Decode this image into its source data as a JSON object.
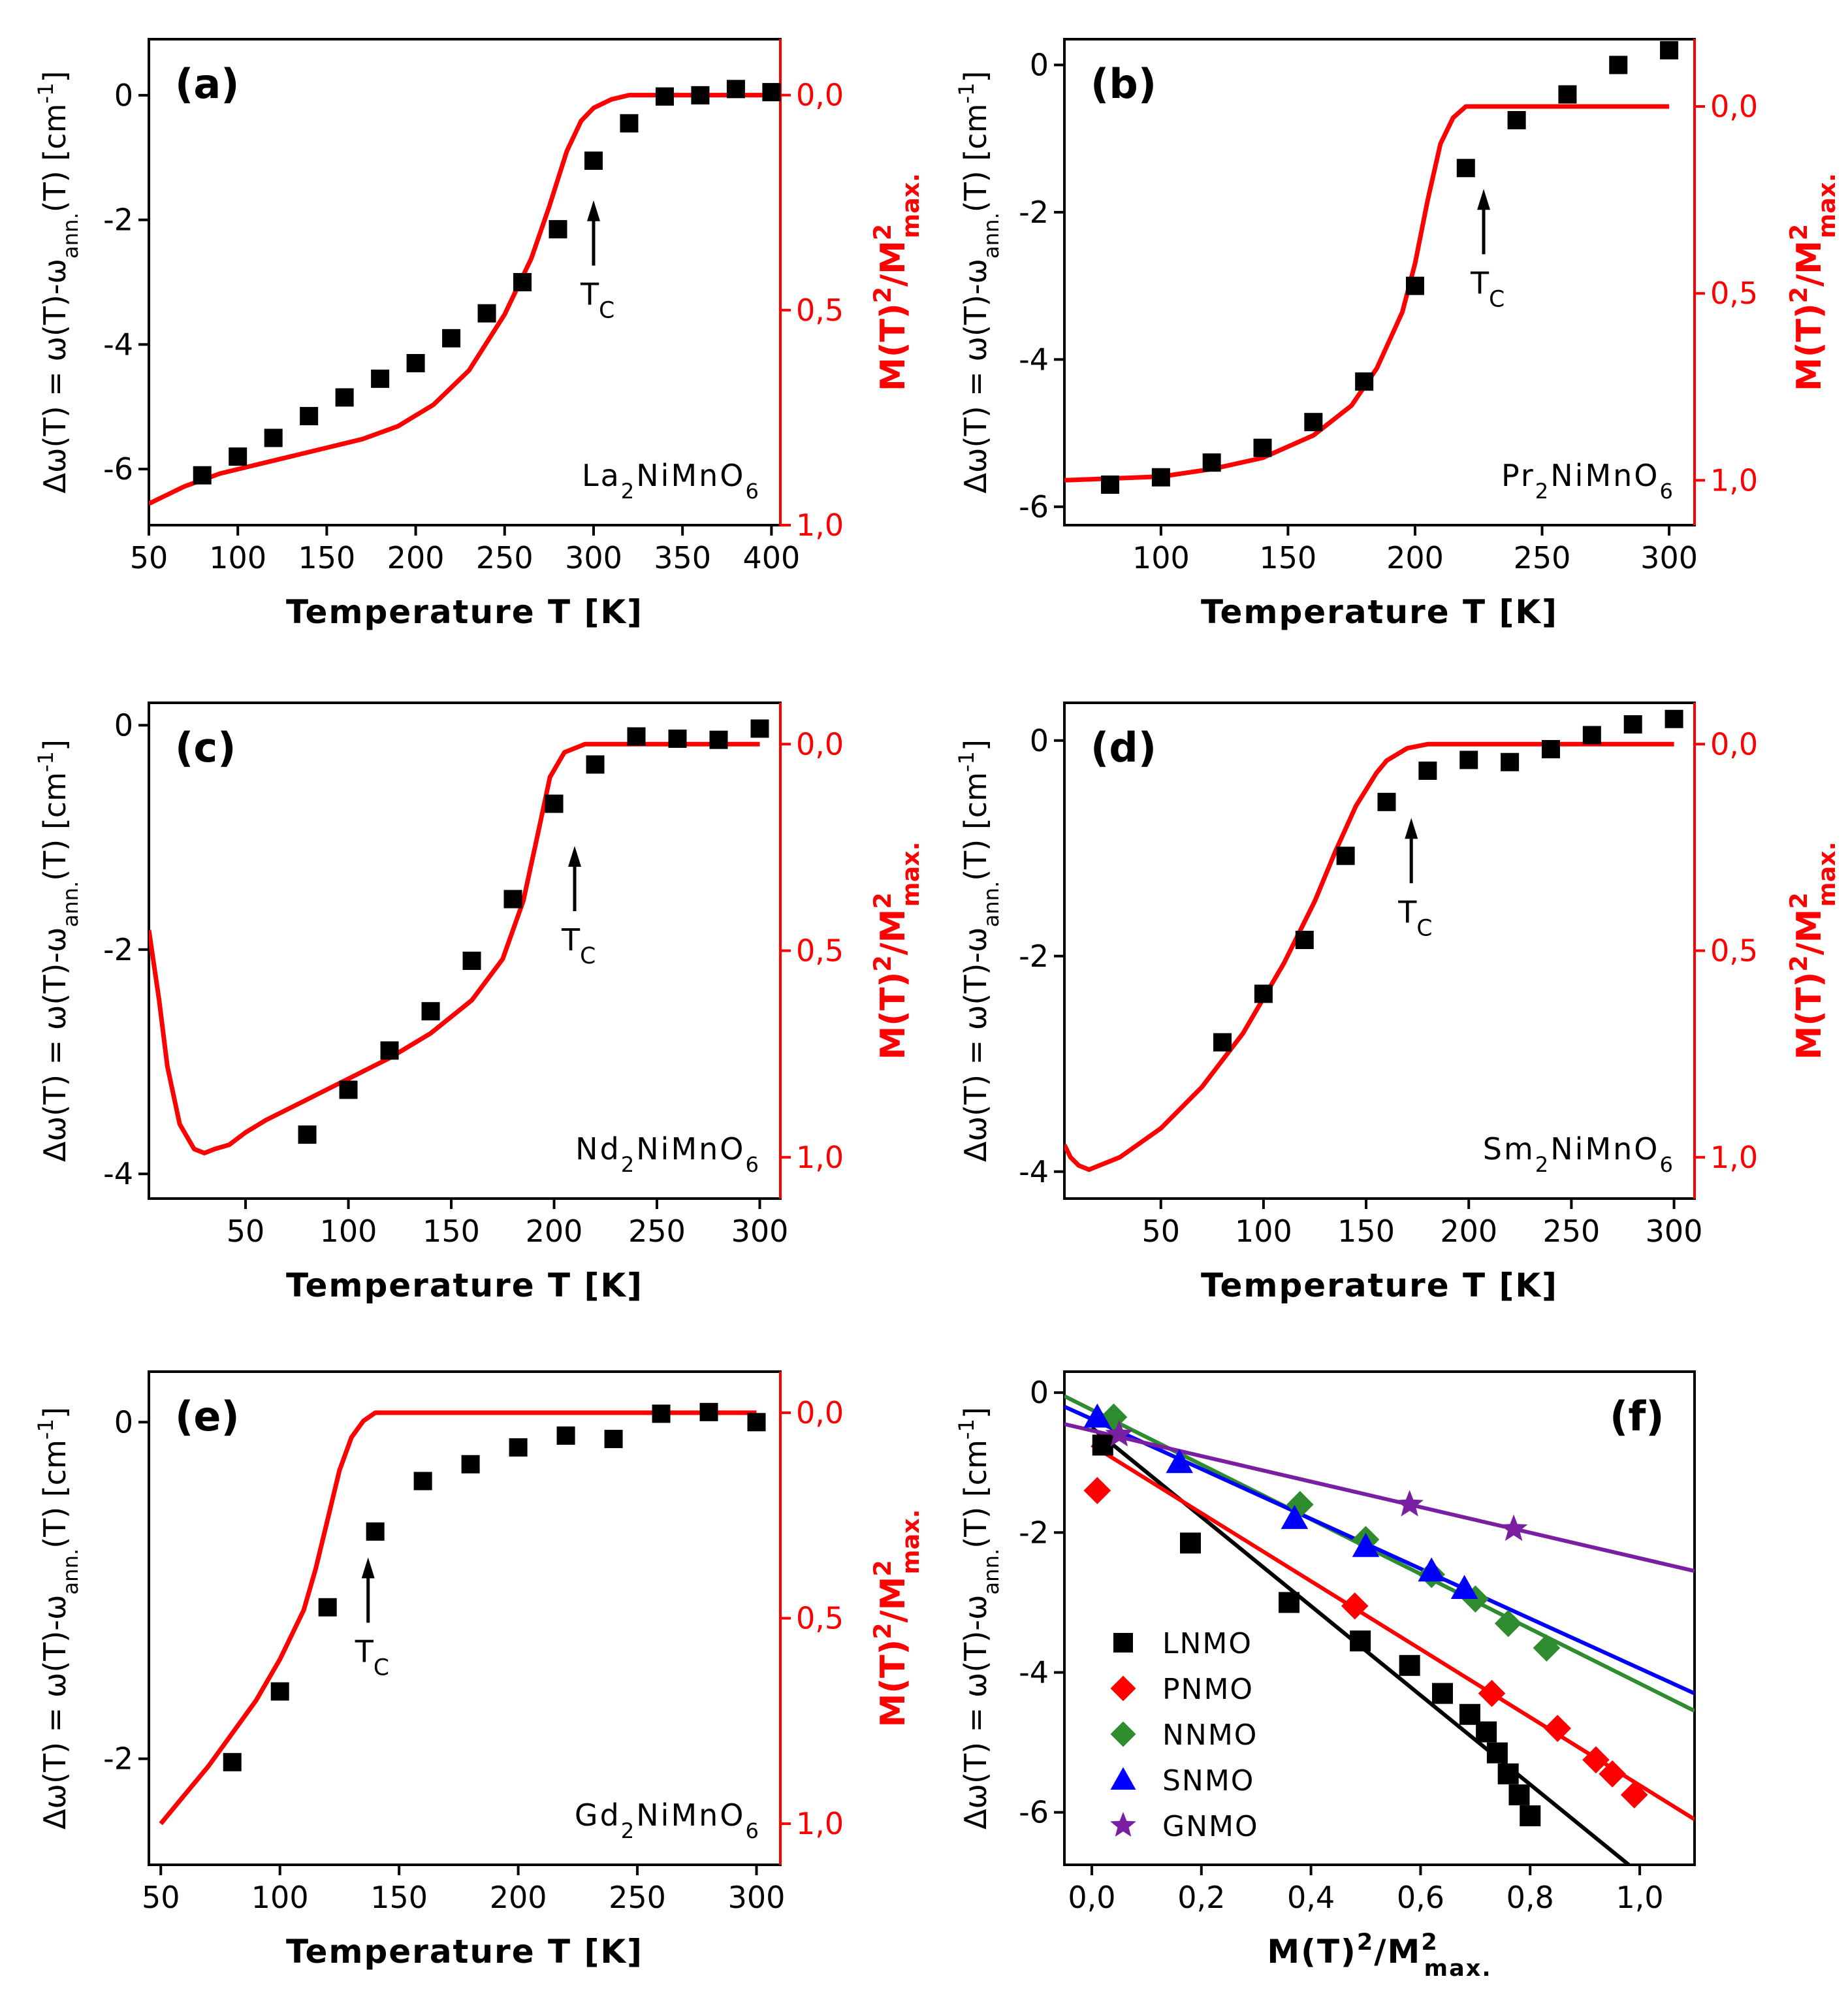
{
  "chart_data": [
    {
      "id": "a",
      "type": "scatter",
      "panel_label": "(a)",
      "annotation": {
        "base": "La",
        "sub1": "2",
        "mid": "NiMnO",
        "sub2": "6"
      },
      "xlabel": "Temperature T [K]",
      "ylabel": {
        "a": "Δω(T) = ω(T)-ω",
        "b": "ann.",
        "c": "(T) [cm",
        "d": "-1",
        "e": "]"
      },
      "y2label": {
        "a": "M(T)",
        "b": "2",
        "c": "/M",
        "d": "2",
        "e": "max."
      },
      "xlim": [
        50,
        405
      ],
      "ylim": [
        -6.9,
        0.9
      ],
      "y2lim": [
        -0.13,
        1.0
      ],
      "xticks": [
        50,
        100,
        150,
        200,
        250,
        300,
        350,
        400
      ],
      "xticklabels": [
        "50",
        "100",
        "150",
        "200",
        "250",
        "300",
        "350",
        "400"
      ],
      "yticks": [
        0,
        -2,
        -4,
        -6
      ],
      "yticklabels": [
        "0",
        "-2",
        "-4",
        "-6"
      ],
      "y2ticks": [
        0,
        0.5,
        1.0
      ],
      "y2ticklabels": [
        "0,0",
        "0,5",
        "1,0"
      ],
      "tc": {
        "label": "T",
        "sub": "C",
        "x": 300,
        "y": -2.0
      },
      "points": {
        "x": [
          80,
          100,
          120,
          140,
          160,
          180,
          200,
          220,
          240,
          260,
          280,
          300,
          320,
          340,
          360,
          380,
          400
        ],
        "y": [
          -6.1,
          -5.8,
          -5.5,
          -5.15,
          -4.85,
          -4.55,
          -4.3,
          -3.9,
          -3.5,
          -3.0,
          -2.15,
          -1.05,
          -0.45,
          -0.02,
          0.0,
          0.1,
          0.05
        ]
      },
      "curve": {
        "x": [
          50,
          70,
          90,
          110,
          130,
          150,
          170,
          190,
          210,
          230,
          250,
          265,
          275,
          285,
          293,
          300,
          310,
          320,
          400
        ],
        "y": [
          0.95,
          0.91,
          0.88,
          0.86,
          0.84,
          0.82,
          0.8,
          0.77,
          0.72,
          0.64,
          0.51,
          0.38,
          0.26,
          0.13,
          0.06,
          0.03,
          0.01,
          0.0,
          0.0
        ]
      }
    },
    {
      "id": "b",
      "type": "scatter",
      "panel_label": "(b)",
      "annotation": {
        "base": "Pr",
        "sub1": "2",
        "mid": "NiMnO",
        "sub2": "6"
      },
      "xlabel": "Temperature T [K]",
      "ylabel": {
        "a": "Δω(T) = ω(T)-ω",
        "b": "ann.",
        "c": "(T) [cm",
        "d": "-1",
        "e": "]"
      },
      "y2label": {
        "a": "M(T)",
        "b": "2",
        "c": "/M",
        "d": "2",
        "e": "max."
      },
      "xlim": [
        62,
        310
      ],
      "ylim": [
        -6.25,
        0.35
      ],
      "y2lim": [
        -0.18,
        1.12
      ],
      "xticks": [
        100,
        150,
        200,
        250,
        300
      ],
      "xticklabels": [
        "100",
        "150",
        "200",
        "250",
        "300"
      ],
      "yticks": [
        0,
        -2,
        -4,
        -6
      ],
      "yticklabels": [
        "0",
        "-2",
        "-4",
        "-6"
      ],
      "y2ticks": [
        0,
        0.5,
        1.0
      ],
      "y2ticklabels": [
        "0,0",
        "0,5",
        "1,0"
      ],
      "tc": {
        "label": "T",
        "sub": "C",
        "x": 227,
        "y": -1.95
      },
      "points": {
        "x": [
          80,
          100,
          120,
          140,
          160,
          180,
          200,
          220,
          240,
          260,
          280,
          300
        ],
        "y": [
          -5.7,
          -5.6,
          -5.4,
          -5.2,
          -4.85,
          -4.3,
          -3.0,
          -1.4,
          -0.75,
          -0.4,
          0.0,
          0.2
        ]
      },
      "curve": {
        "x": [
          62,
          100,
          120,
          140,
          160,
          175,
          185,
          195,
          200,
          205,
          210,
          215,
          220,
          230,
          300
        ],
        "y": [
          1.0,
          0.99,
          0.97,
          0.94,
          0.88,
          0.8,
          0.7,
          0.55,
          0.42,
          0.25,
          0.1,
          0.03,
          0.0,
          0.0,
          0.0
        ]
      }
    },
    {
      "id": "c",
      "type": "scatter",
      "panel_label": "(c)",
      "annotation": {
        "base": "Nd",
        "sub1": "2",
        "mid": "NiMnO",
        "sub2": "6"
      },
      "xlabel": "Temperature T [K]",
      "ylabel": {
        "a": "Δω(T) = ω(T)-ω",
        "b": "ann.",
        "c": "(T) [cm",
        "d": "-1",
        "e": "]"
      },
      "y2label": {
        "a": "M(T)",
        "b": "2",
        "c": "/M",
        "d": "2",
        "e": "max."
      },
      "xlim": [
        3,
        310
      ],
      "ylim": [
        -4.22,
        0.2
      ],
      "y2lim": [
        -0.1,
        1.1
      ],
      "xticks": [
        50,
        100,
        150,
        200,
        250,
        300
      ],
      "xticklabels": [
        "50",
        "100",
        "150",
        "200",
        "250",
        "300"
      ],
      "yticks": [
        0,
        -2,
        -4
      ],
      "yticklabels": [
        "0",
        "-2",
        "-4"
      ],
      "y2ticks": [
        0,
        0.5,
        1.0
      ],
      "y2ticklabels": [
        "0,0",
        "0,5",
        "1,0"
      ],
      "tc": {
        "label": "T",
        "sub": "C",
        "x": 210,
        "y": -1.25
      },
      "points": {
        "x": [
          80,
          100,
          120,
          140,
          160,
          180,
          200,
          220,
          240,
          260,
          280,
          300
        ],
        "y": [
          -3.65,
          -3.25,
          -2.9,
          -2.55,
          -2.1,
          -1.55,
          -0.7,
          -0.35,
          -0.1,
          -0.12,
          -0.13,
          -0.03
        ]
      },
      "curve": {
        "x": [
          3,
          8,
          12,
          18,
          25,
          30,
          35,
          42,
          50,
          60,
          80,
          100,
          120,
          140,
          160,
          175,
          185,
          192,
          198,
          205,
          215,
          300
        ],
        "y": [
          0.45,
          0.62,
          0.78,
          0.92,
          0.98,
          0.99,
          0.98,
          0.97,
          0.94,
          0.91,
          0.86,
          0.81,
          0.76,
          0.7,
          0.62,
          0.52,
          0.38,
          0.22,
          0.08,
          0.02,
          0.0,
          0.0
        ]
      }
    },
    {
      "id": "d",
      "type": "scatter",
      "panel_label": "(d)",
      "annotation": {
        "base": "Sm",
        "sub1": "2",
        "mid": "NiMnO",
        "sub2": "6"
      },
      "xlabel": "Temperature T [K]",
      "ylabel": {
        "a": "Δω(T) = ω(T)-ω",
        "b": "ann.",
        "c": "(T) [cm",
        "d": "-1",
        "e": "]"
      },
      "y2label": {
        "a": "M(T)",
        "b": "2",
        "c": "/M",
        "d": "2",
        "e": "max."
      },
      "xlim": [
        3,
        310
      ],
      "ylim": [
        -4.25,
        0.35
      ],
      "y2lim": [
        -0.1,
        1.1
      ],
      "xticks": [
        50,
        100,
        150,
        200,
        250,
        300
      ],
      "xticklabels": [
        "50",
        "100",
        "150",
        "200",
        "250",
        "300"
      ],
      "yticks": [
        0,
        -2,
        -4
      ],
      "yticklabels": [
        "0",
        "-2",
        "-4"
      ],
      "y2ticks": [
        0,
        0.5,
        1.0
      ],
      "y2ticklabels": [
        "0,0",
        "0,5",
        "1,0"
      ],
      "tc": {
        "label": "T",
        "sub": "C",
        "x": 172,
        "y": -0.9
      },
      "points": {
        "x": [
          80,
          100,
          120,
          140,
          160,
          180,
          200,
          220,
          240,
          260,
          280,
          300
        ],
        "y": [
          -2.8,
          -2.35,
          -1.85,
          -1.07,
          -0.57,
          -0.28,
          -0.18,
          -0.2,
          -0.08,
          0.05,
          0.15,
          0.2
        ]
      },
      "curve": {
        "x": [
          3,
          6,
          10,
          15,
          20,
          30,
          50,
          70,
          90,
          110,
          125,
          135,
          145,
          155,
          160,
          170,
          180,
          300
        ],
        "y": [
          0.97,
          1.0,
          1.02,
          1.03,
          1.02,
          1.0,
          0.93,
          0.83,
          0.7,
          0.53,
          0.38,
          0.26,
          0.15,
          0.07,
          0.04,
          0.01,
          0.0,
          0.0
        ]
      }
    },
    {
      "id": "e",
      "type": "scatter",
      "panel_label": "(e)",
      "annotation": {
        "base": "Gd",
        "sub1": "2",
        "mid": "NiMnO",
        "sub2": "6"
      },
      "xlabel": "Temperature T [K]",
      "ylabel": {
        "a": "Δω(T) = ω(T)-ω",
        "b": "ann.",
        "c": "(T) [cm",
        "d": "-1",
        "e": "]"
      },
      "y2label": {
        "a": "M(T)",
        "b": "2",
        "c": "/M",
        "d": "2",
        "e": "max."
      },
      "xlim": [
        45,
        310
      ],
      "ylim": [
        -2.63,
        0.3
      ],
      "y2lim": [
        -0.1,
        1.1
      ],
      "xticks": [
        50,
        100,
        150,
        200,
        250,
        300
      ],
      "xticklabels": [
        "50",
        "100",
        "150",
        "200",
        "250",
        "300"
      ],
      "yticks": [
        0,
        -2
      ],
      "yticklabels": [
        "0",
        "-2"
      ],
      "y2ticks": [
        0,
        0.5,
        1.0
      ],
      "y2ticklabels": [
        "0,0",
        "0,5",
        "1,0"
      ],
      "tc": {
        "label": "T",
        "sub": "C",
        "x": 137,
        "y": -0.92
      },
      "points": {
        "x": [
          80,
          100,
          120,
          140,
          160,
          180,
          200,
          220,
          240,
          260,
          280,
          300
        ],
        "y": [
          -2.02,
          -1.6,
          -1.1,
          -0.65,
          -0.35,
          -0.25,
          -0.15,
          -0.08,
          -0.1,
          0.05,
          0.06,
          0.0
        ]
      },
      "curve": {
        "x": [
          50,
          60,
          70,
          80,
          90,
          100,
          110,
          115,
          120,
          125,
          130,
          135,
          140,
          145,
          150,
          300
        ],
        "y": [
          1.0,
          0.93,
          0.86,
          0.78,
          0.7,
          0.6,
          0.48,
          0.38,
          0.26,
          0.14,
          0.06,
          0.02,
          0.0,
          0.0,
          0.0,
          0.0
        ]
      }
    },
    {
      "id": "f",
      "type": "scatter",
      "panel_label": "(f)",
      "xlabel": {
        "a": "M(T)",
        "b": "2",
        "c": "/M",
        "d": "2",
        "e": "max."
      },
      "ylabel": {
        "a": "Δω(T) = ω(T)-ω",
        "b": "ann.",
        "c": "(T) [cm",
        "d": "-1",
        "e": "]"
      },
      "xlim": [
        -0.05,
        1.1
      ],
      "ylim": [
        -6.75,
        0.3
      ],
      "xticks": [
        0.0,
        0.2,
        0.4,
        0.6,
        0.8,
        1.0
      ],
      "xticklabels": [
        "0,0",
        "0,2",
        "0,4",
        "0,6",
        "0,8",
        "1,0"
      ],
      "yticks": [
        0,
        -2,
        -4,
        -6
      ],
      "yticklabels": [
        "0",
        "-2",
        "-4",
        "-6"
      ],
      "legend": {
        "position": "lower-left"
      },
      "series": [
        {
          "name": "LNMO",
          "color": "#000000",
          "marker": "square",
          "x": [
            0.02,
            0.18,
            0.36,
            0.49,
            0.58,
            0.64,
            0.69,
            0.72,
            0.74,
            0.76,
            0.78,
            0.8
          ],
          "y": [
            -0.75,
            -2.15,
            -3.0,
            -3.55,
            -3.9,
            -4.3,
            -4.6,
            -4.85,
            -5.15,
            -5.45,
            -5.75,
            -6.05
          ],
          "fit": {
            "x": [
              0.0,
              0.98
            ],
            "y": [
              -0.5,
              -6.75
            ]
          }
        },
        {
          "name": "PNMO",
          "color": "#ff0000",
          "marker": "diamond",
          "x": [
            0.01,
            0.48,
            0.73,
            0.85,
            0.92,
            0.95,
            0.99
          ],
          "y": [
            -1.4,
            -3.05,
            -4.3,
            -4.8,
            -5.25,
            -5.45,
            -5.75
          ],
          "fit": {
            "x": [
              0.0,
              1.1
            ],
            "y": [
              -0.75,
              -6.1
            ]
          }
        },
        {
          "name": "NNMO",
          "color": "#2e8b2e",
          "marker": "diamond",
          "x": [
            0.04,
            0.38,
            0.5,
            0.62,
            0.7,
            0.76,
            0.83
          ],
          "y": [
            -0.35,
            -1.6,
            -2.1,
            -2.6,
            -2.95,
            -3.3,
            -3.65
          ],
          "fit": {
            "x": [
              -0.05,
              1.1
            ],
            "y": [
              -0.05,
              -4.55
            ]
          }
        },
        {
          "name": "SNMO",
          "color": "#0000ff",
          "marker": "triangle",
          "x": [
            0.01,
            0.16,
            0.37,
            0.5,
            0.62,
            0.68
          ],
          "y": [
            -0.35,
            -1.0,
            -1.8,
            -2.2,
            -2.55,
            -2.8
          ],
          "fit": {
            "x": [
              -0.05,
              1.1
            ],
            "y": [
              -0.2,
              -4.3
            ]
          }
        },
        {
          "name": "GNMO",
          "color": "#7a1fa2",
          "marker": "star",
          "x": [
            0.05,
            0.58,
            0.77
          ],
          "y": [
            -0.6,
            -1.6,
            -1.95
          ],
          "fit": {
            "x": [
              -0.05,
              1.1
            ],
            "y": [
              -0.45,
              -2.55
            ]
          }
        }
      ]
    }
  ]
}
